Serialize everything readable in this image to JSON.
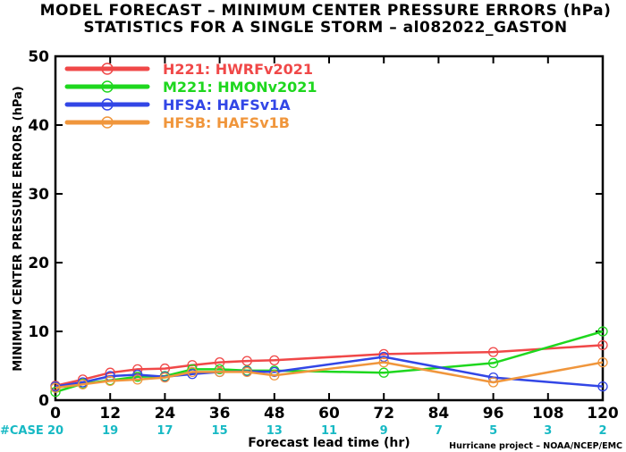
{
  "titles": {
    "line1": "MODEL FORECAST – MINIMUM CENTER PRESSURE ERRORS (hPa)",
    "line2": "STATISTICS FOR A SINGLE STORM – al082022_GASTON"
  },
  "case_label": "#CASE",
  "credit": "Hurricane project – NOAA/NCEP/EMC",
  "colors": {
    "case": "#17b9c4"
  },
  "chart_data": {
    "type": "line",
    "xlabel": "Forecast lead time (hr)",
    "ylabel": "MINIMUM CENTER PRESSURE ERRORS (hPa)",
    "xlim": [
      0,
      120
    ],
    "ylim": [
      0,
      50
    ],
    "xticks": [
      0,
      12,
      24,
      36,
      48,
      60,
      72,
      84,
      96,
      108,
      120
    ],
    "yticks": [
      0,
      10,
      20,
      30,
      40,
      50
    ],
    "case_counts": [
      "20",
      "19",
      "17",
      "15",
      "13",
      "11",
      "9",
      "7",
      "5",
      "3",
      "2"
    ],
    "legend_position": "top-left",
    "series": [
      {
        "name": "H221:",
        "model": "HWRFv2021",
        "color": "#f04848",
        "x": [
          0,
          6,
          12,
          18,
          24,
          30,
          36,
          42,
          48,
          72,
          96,
          120
        ],
        "y": [
          2.1,
          3.0,
          4.0,
          4.5,
          4.6,
          5.1,
          5.5,
          5.7,
          5.8,
          6.7,
          7.0,
          8.0
        ]
      },
      {
        "name": "M221:",
        "model": "HMONv2021",
        "color": "#1ed71e",
        "x": [
          0,
          6,
          12,
          18,
          24,
          30,
          36,
          42,
          48,
          72,
          96,
          120
        ],
        "y": [
          1.2,
          2.4,
          2.9,
          3.4,
          3.5,
          4.5,
          4.5,
          4.3,
          4.3,
          4.0,
          5.4,
          10.0
        ]
      },
      {
        "name": "HFSA:",
        "model": "HAFSv1A",
        "color": "#3246e6",
        "x": [
          0,
          6,
          12,
          18,
          24,
          30,
          36,
          42,
          48,
          72,
          96,
          120
        ],
        "y": [
          2.0,
          2.6,
          3.5,
          3.7,
          3.4,
          3.8,
          4.1,
          4.2,
          4.1,
          6.3,
          3.3,
          2.0
        ]
      },
      {
        "name": "HFSB:",
        "model": "HAFSv1B",
        "color": "#f0963c",
        "x": [
          0,
          6,
          12,
          18,
          24,
          30,
          36,
          42,
          48,
          72,
          96,
          120
        ],
        "y": [
          1.8,
          2.3,
          2.8,
          3.0,
          3.3,
          4.1,
          4.1,
          4.1,
          3.6,
          5.5,
          2.6,
          5.5
        ]
      }
    ]
  }
}
